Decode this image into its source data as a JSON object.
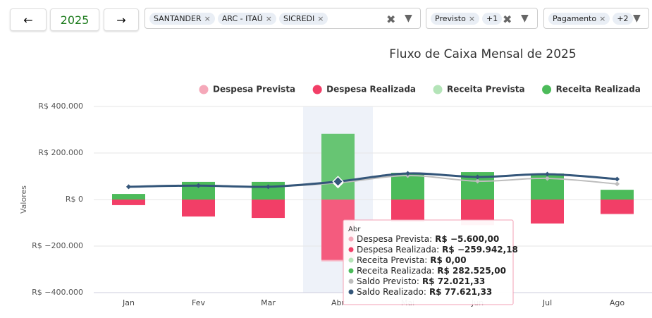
{
  "toolbar": {
    "prev": "←",
    "year": "2025",
    "next": "→",
    "banks": [
      "SANTANDER",
      "ARC - ITAÚ",
      "SICREDI"
    ],
    "status": {
      "chip": "Previsto",
      "more": "+1"
    },
    "kind": {
      "chip": "Pagamento",
      "more": "+2"
    }
  },
  "chart_data": {
    "type": "bar",
    "title": "Fluxo de Caixa Mensal de 2025",
    "y_label": "Valores",
    "categories": [
      "Jan",
      "Fev",
      "Mar",
      "Abr",
      "Mai",
      "Jun",
      "Jul",
      "Ago"
    ],
    "ylim": [
      -400000,
      400000
    ],
    "yticks": [
      {
        "value": 400000,
        "label": "R$ 400.000"
      },
      {
        "value": 200000,
        "label": "R$ 200.000"
      },
      {
        "value": 0,
        "label": "R$ 0"
      },
      {
        "value": -200000,
        "label": "R$ −200.000"
      },
      {
        "value": -400000,
        "label": "R$ −400.000"
      }
    ],
    "grid": true,
    "series": [
      {
        "name": "Despesa Prevista",
        "type": "bar",
        "color": "#f5a8b9",
        "values": [
          0,
          0,
          0,
          -5600,
          0,
          0,
          0,
          -3000
        ]
      },
      {
        "name": "Despesa Realizada",
        "type": "bar",
        "color": "#f23e67",
        "values": [
          -24000,
          -73000,
          -79000,
          -259942.18,
          -97000,
          -110000,
          -103000,
          -61000
        ]
      },
      {
        "name": "Receita Prevista",
        "type": "bar",
        "color": "#b4e4b8",
        "values": [
          0,
          0,
          0,
          0,
          0,
          0,
          0,
          0
        ]
      },
      {
        "name": "Receita Realizada",
        "type": "bar",
        "color": "#4cbb5a",
        "values": [
          24000,
          76000,
          76000,
          282525,
          115000,
          118000,
          112000,
          42000
        ]
      },
      {
        "name": "Saldo Previsto",
        "type": "line",
        "color": "#bdbdbd",
        "values": [
          55000,
          60000,
          55000,
          72021.33,
          103000,
          79000,
          91000,
          67000
        ]
      },
      {
        "name": "Saldo Realizado",
        "type": "line",
        "color": "#34567a",
        "values": [
          55000,
          60000,
          55000,
          77621.33,
          112000,
          97000,
          109000,
          88000
        ]
      }
    ],
    "tooltip": {
      "title": "Abr",
      "rows": [
        {
          "label": "Despesa Prevista:",
          "value_label": "R$ −5.600,00"
        },
        {
          "label": "Despesa Realizada:",
          "value_label": "R$ −259.942,18"
        },
        {
          "label": "Receita Prevista:",
          "value_label": "R$ 0,00"
        },
        {
          "label": "Receita Realizada:",
          "value_label": "R$ 282.525,00"
        },
        {
          "label": "Saldo Previsto:",
          "value_label": "R$ 72.021,33"
        },
        {
          "label": "Saldo Realizado:",
          "value_label": "R$ 77.621,33"
        }
      ]
    }
  }
}
